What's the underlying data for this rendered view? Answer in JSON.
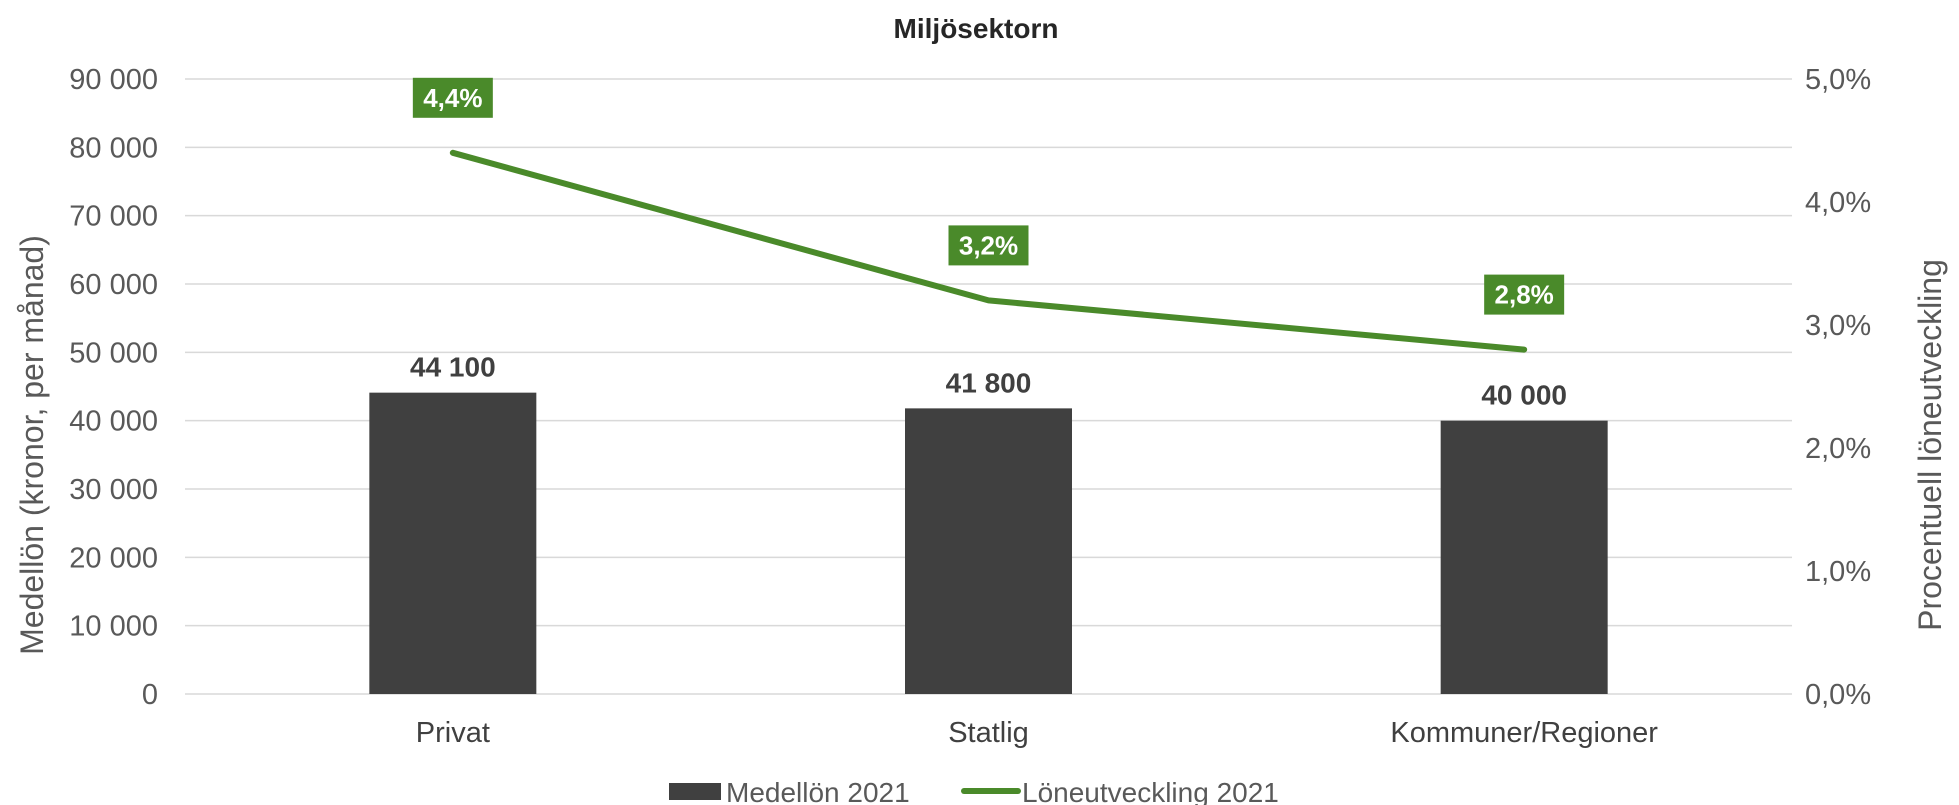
{
  "chart_data": {
    "type": "bar",
    "title": "Miljösektorn",
    "categories": [
      "Privat",
      "Statlig",
      "Kommuner/Regioner"
    ],
    "series": [
      {
        "name": "Medellön 2021",
        "type": "bar",
        "axis": "left",
        "color": "#404040",
        "values": [
          44100,
          41800,
          40000
        ],
        "labels": [
          "44 100",
          "41 800",
          "40 000"
        ]
      },
      {
        "name": "Löneutveckling 2021",
        "type": "line",
        "axis": "right",
        "color": "#4a8a2a",
        "values": [
          4.4,
          3.2,
          2.8
        ],
        "labels": [
          "4,4%",
          "3,2%",
          "2,8%"
        ]
      }
    ],
    "ylabel": "Medellön (kronor, per månad)",
    "y2label": "Procentuell löneutveckling",
    "ylim": [
      0,
      90000
    ],
    "y2lim": [
      0,
      5
    ],
    "yticks": [
      "0",
      "10 000",
      "20 000",
      "30 000",
      "40 000",
      "50 000",
      "60 000",
      "70 000",
      "80 000",
      "90 000"
    ],
    "y2ticks": [
      "0,0%",
      "1,0%",
      "2,0%",
      "3,0%",
      "4,0%",
      "5,0%"
    ],
    "grid": true,
    "legend_position": "bottom"
  }
}
